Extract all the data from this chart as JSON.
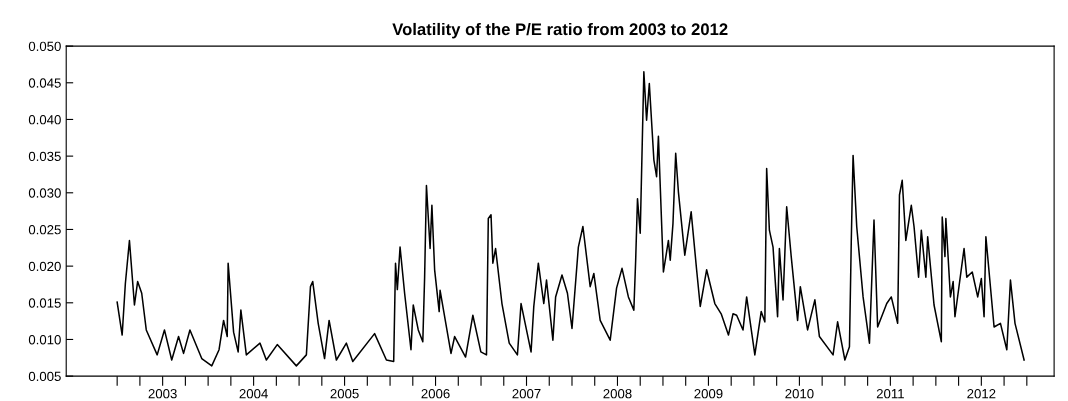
{
  "chart_data": {
    "type": "line",
    "title": "Volatility of the P/E ratio from 2003 to 2012",
    "xlim": [
      2002.44,
      2013.3
    ],
    "xticks": [
      {
        "value": 2003,
        "label": null
      },
      {
        "value": 2003.25,
        "label": null
      },
      {
        "value": 2003.5,
        "label": "2003"
      },
      {
        "value": 2003.75,
        "label": null
      },
      {
        "value": 2004,
        "label": null
      },
      {
        "value": 2004.25,
        "label": null
      },
      {
        "value": 2004.5,
        "label": "2004"
      },
      {
        "value": 2004.75,
        "label": null
      },
      {
        "value": 2005,
        "label": null
      },
      {
        "value": 2005.25,
        "label": null
      },
      {
        "value": 2005.5,
        "label": "2005"
      },
      {
        "value": 2005.75,
        "label": null
      },
      {
        "value": 2006,
        "label": null
      },
      {
        "value": 2006.25,
        "label": null
      },
      {
        "value": 2006.5,
        "label": "2006"
      },
      {
        "value": 2006.75,
        "label": null
      },
      {
        "value": 2007,
        "label": null
      },
      {
        "value": 2007.25,
        "label": null
      },
      {
        "value": 2007.5,
        "label": "2007"
      },
      {
        "value": 2007.75,
        "label": null
      },
      {
        "value": 2008,
        "label": null
      },
      {
        "value": 2008.25,
        "label": null
      },
      {
        "value": 2008.5,
        "label": "2008"
      },
      {
        "value": 2008.75,
        "label": null
      },
      {
        "value": 2009,
        "label": null
      },
      {
        "value": 2009.25,
        "label": null
      },
      {
        "value": 2009.5,
        "label": "2009"
      },
      {
        "value": 2009.75,
        "label": null
      },
      {
        "value": 2010,
        "label": null
      },
      {
        "value": 2010.25,
        "label": null
      },
      {
        "value": 2010.5,
        "label": "2010"
      },
      {
        "value": 2010.75,
        "label": null
      },
      {
        "value": 2011,
        "label": null
      },
      {
        "value": 2011.25,
        "label": null
      },
      {
        "value": 2011.5,
        "label": "2011"
      },
      {
        "value": 2011.75,
        "label": null
      },
      {
        "value": 2012,
        "label": null
      },
      {
        "value": 2012.25,
        "label": null
      },
      {
        "value": 2012.5,
        "label": "2012"
      },
      {
        "value": 2012.75,
        "label": null
      },
      {
        "value": 2013,
        "label": null
      }
    ],
    "ylim": [
      0.005,
      0.05
    ],
    "yticks": [
      {
        "value": 0.005,
        "label": "0.005"
      },
      {
        "value": 0.01,
        "label": "0.010"
      },
      {
        "value": 0.015,
        "label": "0.015"
      },
      {
        "value": 0.02,
        "label": "0.020"
      },
      {
        "value": 0.025,
        "label": "0.025"
      },
      {
        "value": 0.03,
        "label": "0.030"
      },
      {
        "value": 0.035,
        "label": "0.035"
      },
      {
        "value": 0.04,
        "label": "0.040"
      },
      {
        "value": 0.045,
        "label": "0.045"
      },
      {
        "value": 0.05,
        "label": "0.050"
      }
    ],
    "grid": false,
    "legend": false,
    "marker": "none",
    "line_style": "solid",
    "series": [
      {
        "color": "#000000",
        "x": [
          2003.0,
          2003.055,
          2003.09,
          2003.135,
          2003.19,
          2003.225,
          2003.27,
          2003.32,
          2003.44,
          2003.52,
          2003.6,
          2003.675,
          2003.73,
          2003.8,
          2003.93,
          2004.04,
          2004.12,
          2004.17,
          2004.21,
          2004.22,
          2004.28,
          2004.33,
          2004.36,
          2004.42,
          2004.57,
          2004.64,
          2004.76,
          2004.97,
          2005.08,
          2005.125,
          2005.15,
          2005.21,
          2005.28,
          2005.33,
          2005.41,
          2005.52,
          2005.59,
          2005.83,
          2005.96,
          2006.04,
          2006.06,
          2006.08,
          2006.11,
          2006.16,
          2006.23,
          2006.255,
          2006.31,
          2006.36,
          2006.38,
          2006.4,
          2006.44,
          2006.46,
          2006.49,
          2006.54,
          2006.55,
          2006.67,
          2006.71,
          2006.83,
          2006.91,
          2006.998,
          2007.06,
          2007.08,
          2007.11,
          2007.13,
          2007.16,
          2007.23,
          2007.31,
          2007.4,
          2007.44,
          2007.55,
          2007.58,
          2007.63,
          2007.69,
          2007.72,
          2007.79,
          2007.82,
          2007.89,
          2007.95,
          2008.0,
          2008.07,
          2008.12,
          2008.2,
          2008.24,
          2008.31,
          2008.42,
          2008.49,
          2008.55,
          2008.62,
          2008.68,
          2008.7,
          2008.72,
          2008.75,
          2008.79,
          2008.82,
          2008.85,
          2008.9,
          2008.93,
          2008.95,
          2009.005,
          2009.06,
          2009.08,
          2009.11,
          2009.14,
          2009.17,
          2009.24,
          2009.31,
          2009.37,
          2009.41,
          2009.48,
          2009.57,
          2009.64,
          2009.72,
          2009.77,
          2009.81,
          2009.88,
          2009.92,
          2010.01,
          2010.08,
          2010.12,
          2010.14,
          2010.17,
          2010.21,
          2010.26,
          2010.28,
          2010.32,
          2010.36,
          2010.41,
          2010.48,
          2010.51,
          2010.59,
          2010.67,
          2010.72,
          2010.87,
          2010.92,
          2011.0,
          2011.05,
          2011.07,
          2011.09,
          2011.13,
          2011.2,
          2011.27,
          2011.32,
          2011.36,
          2011.46,
          2011.51,
          2011.58,
          2011.6,
          2011.63,
          2011.67,
          2011.73,
          2011.76,
          2011.81,
          2011.84,
          2011.89,
          2011.91,
          2011.98,
          2012.06,
          2012.07,
          2012.1,
          2012.11,
          2012.16,
          2012.19,
          2012.21,
          2012.31,
          2012.34,
          2012.4,
          2012.46,
          2012.5,
          2012.53,
          2012.55,
          2012.64,
          2012.71,
          2012.78,
          2012.82,
          2012.87,
          2012.97
        ],
        "values": [
          0.0151,
          0.0106,
          0.0176,
          0.0235,
          0.0147,
          0.0179,
          0.0163,
          0.0113,
          0.0079,
          0.0113,
          0.0072,
          0.0104,
          0.0081,
          0.0113,
          0.0074,
          0.0064,
          0.0086,
          0.0126,
          0.0104,
          0.0204,
          0.011,
          0.0083,
          0.014,
          0.0079,
          0.0095,
          0.0072,
          0.0093,
          0.0064,
          0.0079,
          0.0172,
          0.0179,
          0.0122,
          0.0074,
          0.0126,
          0.0072,
          0.0095,
          0.007,
          0.0108,
          0.0072,
          0.007,
          0.0204,
          0.0168,
          0.0226,
          0.0163,
          0.0086,
          0.0147,
          0.0113,
          0.0097,
          0.0185,
          0.031,
          0.0224,
          0.0283,
          0.0195,
          0.0138,
          0.0167,
          0.0081,
          0.0104,
          0.0076,
          0.0133,
          0.0083,
          0.0079,
          0.0265,
          0.027,
          0.0204,
          0.0224,
          0.0149,
          0.0095,
          0.0079,
          0.0149,
          0.0083,
          0.0145,
          0.0204,
          0.0149,
          0.0181,
          0.0099,
          0.0158,
          0.0188,
          0.0163,
          0.0115,
          0.0226,
          0.0254,
          0.0172,
          0.019,
          0.0126,
          0.0099,
          0.017,
          0.0197,
          0.0158,
          0.014,
          0.0208,
          0.0292,
          0.0245,
          0.0465,
          0.0399,
          0.0449,
          0.0345,
          0.0322,
          0.0377,
          0.0192,
          0.0235,
          0.0208,
          0.0258,
          0.0354,
          0.0301,
          0.0215,
          0.0274,
          0.0195,
          0.0145,
          0.0195,
          0.0149,
          0.0135,
          0.0106,
          0.0135,
          0.0133,
          0.0113,
          0.0158,
          0.0079,
          0.0138,
          0.0124,
          0.0333,
          0.0249,
          0.0226,
          0.0131,
          0.0224,
          0.0154,
          0.0281,
          0.0213,
          0.0126,
          0.0172,
          0.0113,
          0.0154,
          0.0104,
          0.0079,
          0.0124,
          0.0072,
          0.009,
          0.0233,
          0.0351,
          0.0254,
          0.0158,
          0.0095,
          0.0263,
          0.0117,
          0.0149,
          0.0158,
          0.0122,
          0.0297,
          0.0317,
          0.0235,
          0.0283,
          0.0254,
          0.0185,
          0.0249,
          0.0185,
          0.024,
          0.0147,
          0.0097,
          0.0267,
          0.0213,
          0.0265,
          0.0158,
          0.0179,
          0.0131,
          0.0224,
          0.0185,
          0.0192,
          0.0158,
          0.0183,
          0.0131,
          0.024,
          0.0117,
          0.0122,
          0.0086,
          0.0181,
          0.0122,
          0.0072
        ]
      }
    ]
  }
}
